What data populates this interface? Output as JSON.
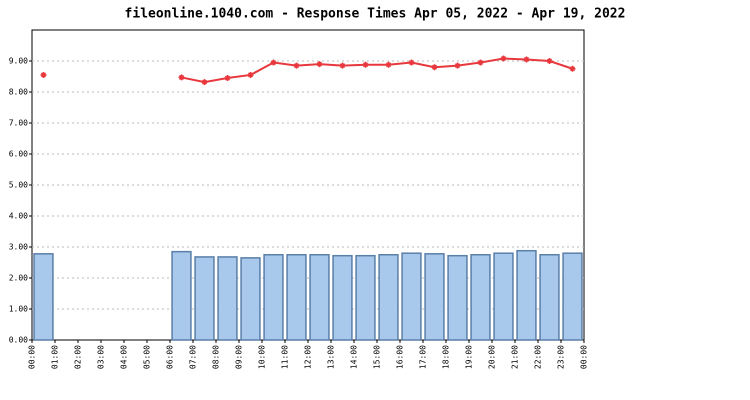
{
  "chart_data": {
    "type": "combo",
    "title": "fileonline.1040.com - Response Times Apr 05, 2022 - Apr 19, 2022",
    "xtick_labels": [
      "00:00",
      "01:00",
      "02:00",
      "03:00",
      "04:00",
      "05:00",
      "06:00",
      "07:00",
      "08:00",
      "09:00",
      "10:00",
      "11:00",
      "12:00",
      "13:00",
      "14:00",
      "15:00",
      "16:00",
      "17:00",
      "18:00",
      "19:00",
      "20:00",
      "21:00",
      "22:00",
      "23:00",
      "00:00"
    ],
    "series": [
      {
        "type": "bar",
        "color": "#a8c8ec",
        "edge": "#5a7fa8",
        "values": [
          2.78,
          null,
          null,
          null,
          null,
          null,
          2.85,
          2.68,
          2.68,
          2.65,
          2.75,
          2.75,
          2.75,
          2.72,
          2.72,
          2.75,
          2.8,
          2.78,
          2.72,
          2.75,
          2.8,
          2.88,
          2.75,
          2.8
        ]
      },
      {
        "type": "line",
        "color": "#e8383d",
        "values": [
          8.55,
          null,
          null,
          null,
          null,
          null,
          8.47,
          8.32,
          8.45,
          8.55,
          8.95,
          8.85,
          8.9,
          8.85,
          8.88,
          8.88,
          8.95,
          8.8,
          8.85,
          8.95,
          9.08,
          9.05,
          9.0,
          8.75
        ]
      }
    ],
    "ylim": [
      0,
      10
    ],
    "yticks": [
      {
        "value": 0,
        "label": "0.00"
      },
      {
        "value": 1,
        "label": "1.00"
      },
      {
        "value": 2,
        "label": "2.00"
      },
      {
        "value": 3,
        "label": "3.00"
      },
      {
        "value": 4,
        "label": "4.00"
      },
      {
        "value": 5,
        "label": "5.00"
      },
      {
        "value": 6,
        "label": "6.00"
      },
      {
        "value": 7,
        "label": "7.00"
      },
      {
        "value": 8,
        "label": "8.00"
      },
      {
        "value": 9,
        "label": "9.00"
      }
    ],
    "grid": true
  }
}
